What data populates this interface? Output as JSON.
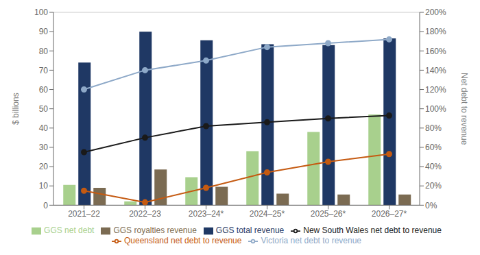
{
  "chart_data": {
    "type": "bar",
    "categories": [
      "2021–22",
      "2022–23",
      "2023–24*",
      "2024–25*",
      "2025–26*",
      "2026–27*"
    ],
    "ylabel": "$ billions",
    "y2label": "Net debt to revenue",
    "ylim": [
      0,
      100
    ],
    "yticks": [
      0,
      10,
      20,
      30,
      40,
      50,
      60,
      70,
      80,
      90,
      100
    ],
    "y2lim": [
      0,
      200
    ],
    "y2ticks": [
      {
        "value": 0,
        "label": "0%"
      },
      {
        "value": 20,
        "label": "20%"
      },
      {
        "value": 40,
        "label": "40%"
      },
      {
        "value": 60,
        "label": "60%"
      },
      {
        "value": 80,
        "label": "80%"
      },
      {
        "value": 100,
        "label": "100%"
      },
      {
        "value": 120,
        "label": "120%"
      },
      {
        "value": 140,
        "label": "140%"
      },
      {
        "value": 160,
        "label": "160%"
      },
      {
        "value": 180,
        "label": "180%"
      },
      {
        "value": 200,
        "label": "200%"
      }
    ],
    "grid": true,
    "legend": "bottom",
    "series": [
      {
        "name": "GGS net debt",
        "type": "bar",
        "color": "#a8d08d",
        "values": [
          10.5,
          2.0,
          14.5,
          28.0,
          38.0,
          47.0
        ]
      },
      {
        "name": "GGS total revenue",
        "type": "bar",
        "color": "#1f3864",
        "values": [
          74.0,
          90.0,
          85.5,
          83.5,
          83.0,
          86.5
        ]
      },
      {
        "name": "GGS royalties revenue",
        "type": "bar",
        "color": "#7b6b52",
        "values": [
          9.0,
          18.5,
          9.5,
          6.0,
          5.5,
          5.5
        ]
      },
      {
        "name": "Queensland net debt to revenue",
        "type": "line",
        "axis": "y2",
        "marker": "circle",
        "color": "#c55a11",
        "values": [
          15,
          3,
          18,
          34,
          45,
          53
        ]
      },
      {
        "name": "New South Wales net debt to revenue",
        "type": "line",
        "axis": "y2",
        "marker": "circle",
        "color": "#1a1a1a",
        "values": [
          55,
          70,
          82,
          86,
          90,
          93
        ]
      },
      {
        "name": "Victoria net debt to revenue",
        "type": "line",
        "axis": "y2",
        "marker": "circle",
        "color": "#8ea9c8",
        "values": [
          120,
          140,
          150,
          164,
          168,
          172
        ]
      }
    ]
  }
}
